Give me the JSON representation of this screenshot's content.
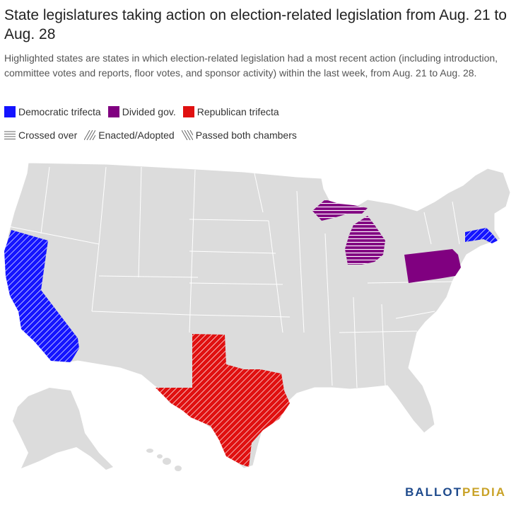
{
  "title": "State legislatures taking action on election-related legislation from Aug. 21 to Aug. 28",
  "subtitle": "Highlighted states are states in which election-related legislation had a most recent action (including introduction, committee votes and reports, floor votes, and sponsor activity) within the last week, from Aug. 21 to Aug. 28.",
  "legend": {
    "colors": [
      {
        "label": "Democratic trifecta",
        "color": "#1414ff"
      },
      {
        "label": "Divided gov.",
        "color": "#800080"
      },
      {
        "label": "Republican trifecta",
        "color": "#e01010"
      }
    ],
    "patterns": [
      {
        "label": "Crossed over",
        "pattern": "horizontal"
      },
      {
        "label": "Enacted/Adopted",
        "pattern": "diagonal-right"
      },
      {
        "label": "Passed both chambers",
        "pattern": "diagonal-left"
      }
    ]
  },
  "highlighted_states": [
    {
      "state": "California",
      "party": "Democratic trifecta",
      "status": "Enacted/Adopted"
    },
    {
      "state": "Massachusetts",
      "party": "Democratic trifecta",
      "status": "Enacted/Adopted"
    },
    {
      "state": "Michigan",
      "party": "Divided gov.",
      "status": "Crossed over"
    },
    {
      "state": "Pennsylvania",
      "party": "Divided gov.",
      "status": "none"
    },
    {
      "state": "Texas",
      "party": "Republican trifecta",
      "status": "Enacted/Adopted"
    }
  ],
  "colors": {
    "base_state": "#dcdcdc",
    "border": "#ffffff"
  },
  "logo": {
    "part1": "BALLOT",
    "part2": "PEDIA"
  }
}
